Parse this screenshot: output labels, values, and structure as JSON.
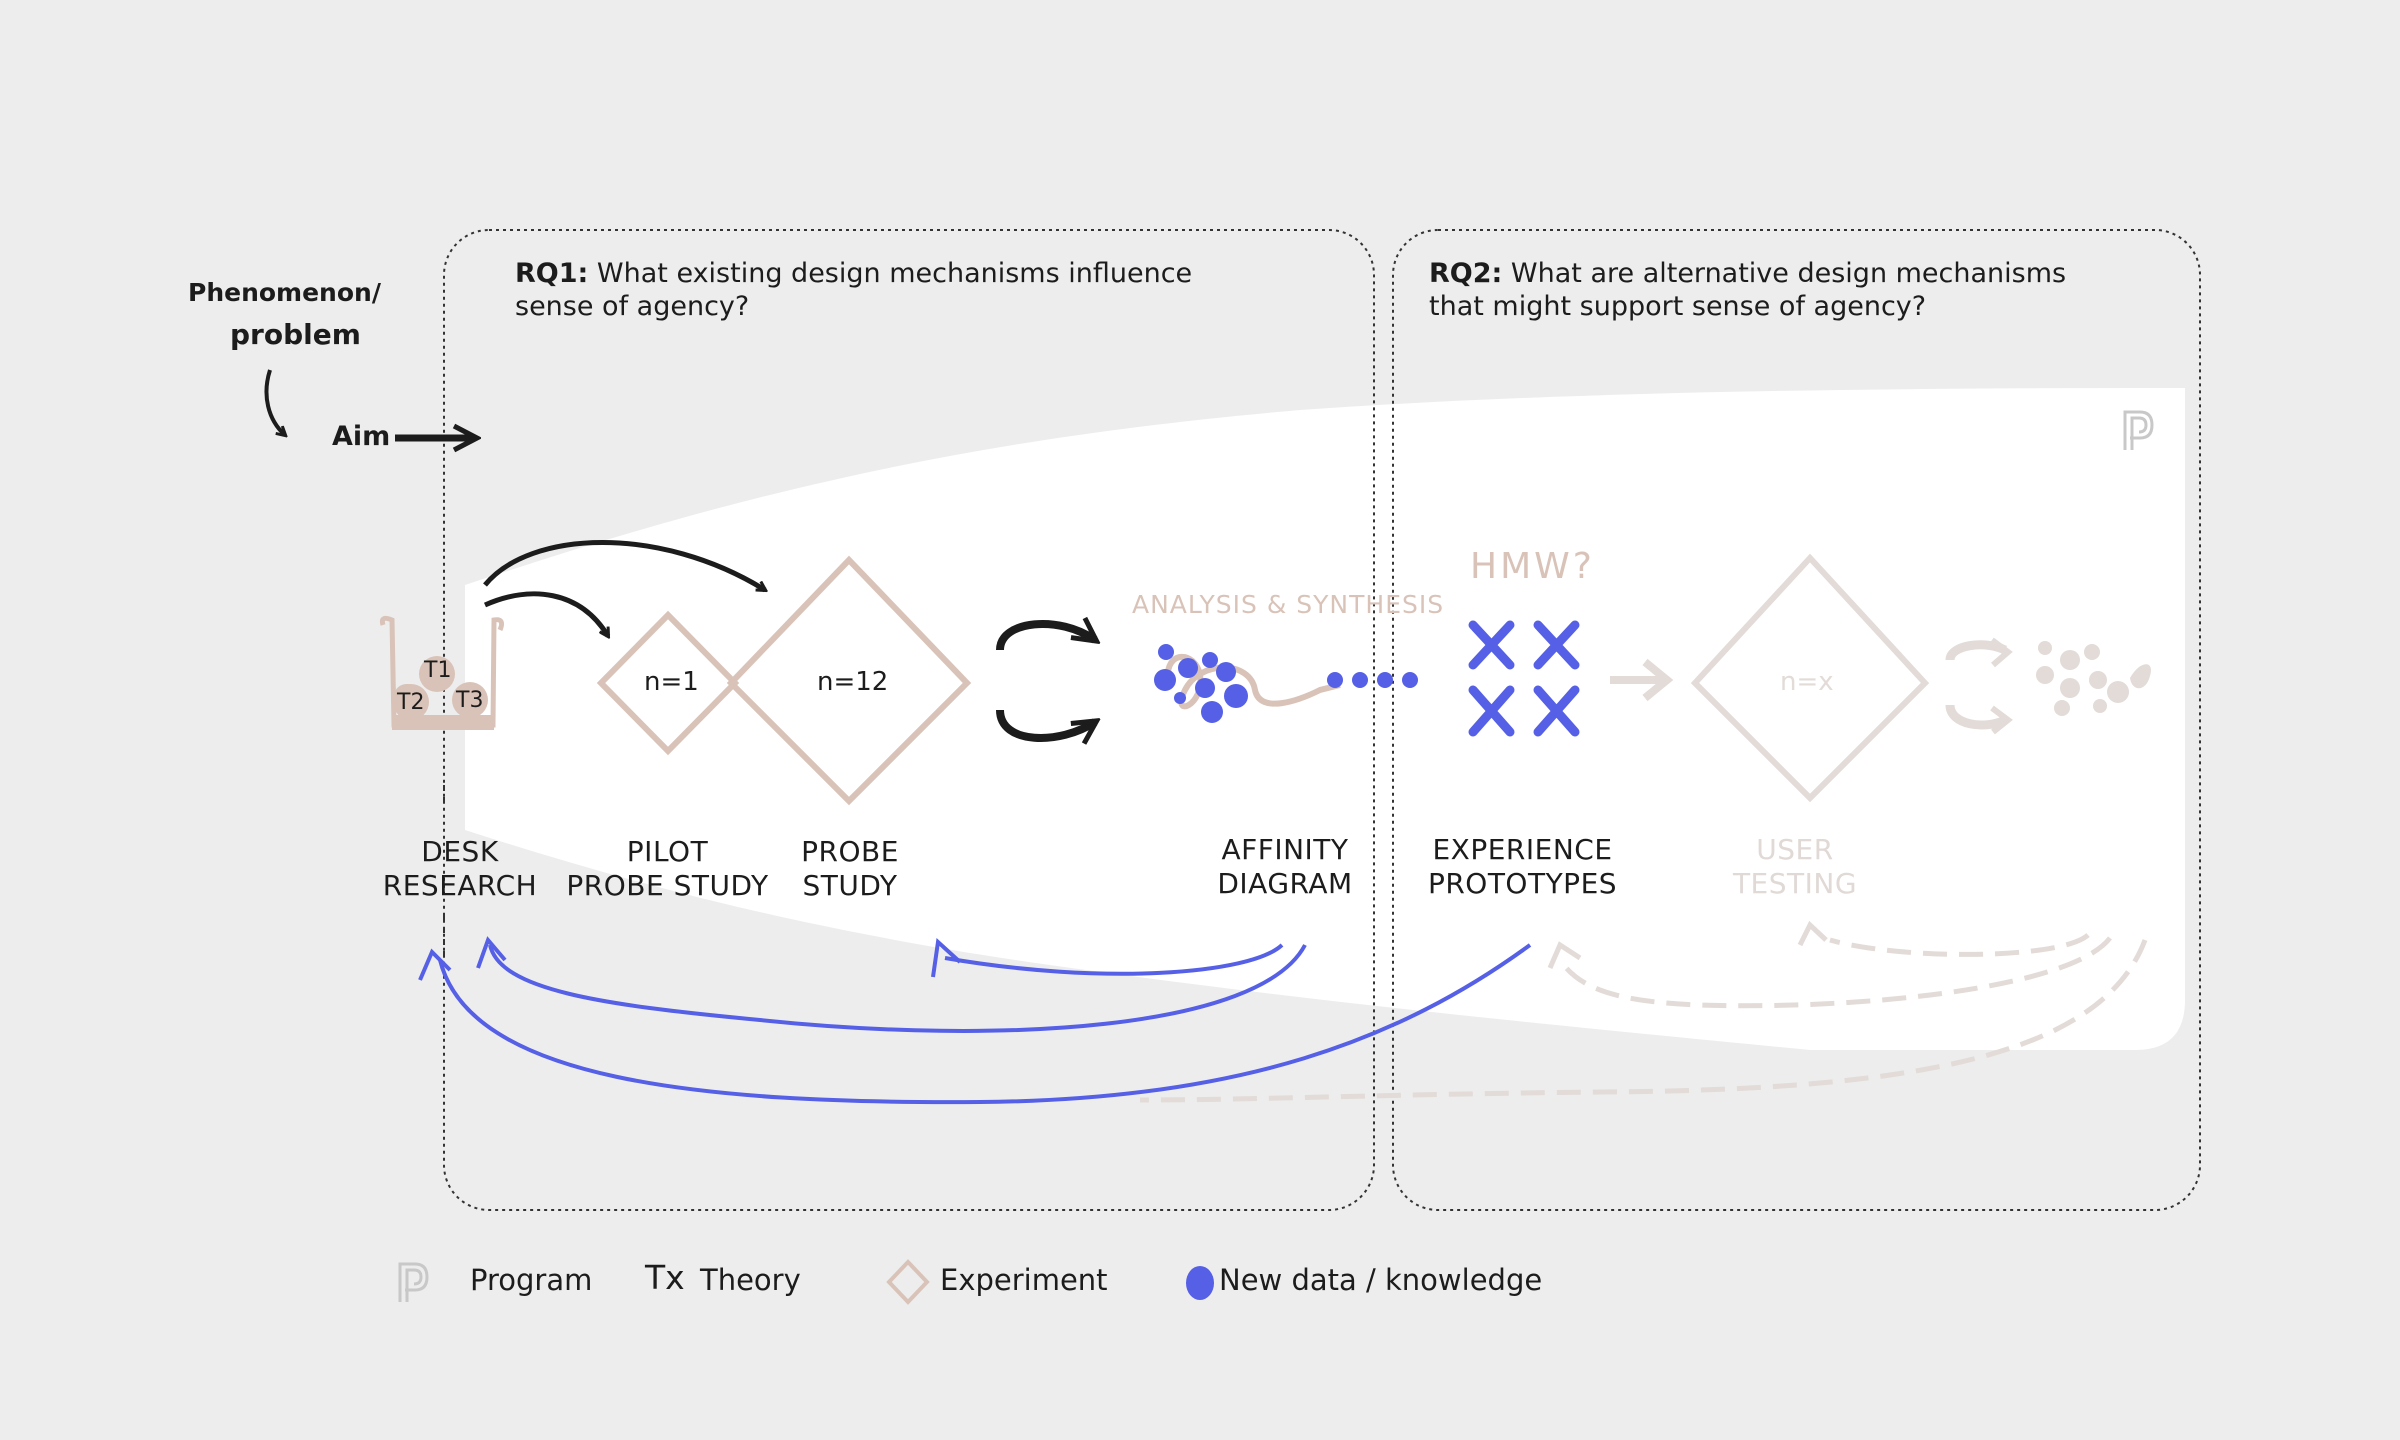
{
  "start": {
    "phenomenon_line1": "Phenomenon/",
    "phenomenon_line2": "problem",
    "aim": "Aim"
  },
  "rq1": {
    "label": "RQ1:",
    "line1": "What existing design mechanisms influence",
    "line2": "sense of agency?"
  },
  "rq2": {
    "label": "RQ2:",
    "line1": "What are alternative design mechanisms",
    "line2": "that might support sense of agency?"
  },
  "theories": [
    "T1",
    "T2",
    "T3"
  ],
  "experiments": {
    "pilot_n": "n=1",
    "probe_n": "n=12",
    "user_n": "n=x"
  },
  "annotations": {
    "analysis": "ANALYSIS & SYNTHESIS",
    "hmw": "HMW?"
  },
  "stages": {
    "desk": [
      "DESK",
      "RESEARCH"
    ],
    "pilot": [
      "PILOT",
      "PROBE STUDY"
    ],
    "probe": [
      "PROBE",
      "STUDY"
    ],
    "affinity": [
      "AFFINITY",
      "DIAGRAM"
    ],
    "experience": [
      "EXPERIENCE",
      "PROTOTYPES"
    ],
    "user": [
      "USER",
      "TESTING"
    ]
  },
  "legend": {
    "program": "Program",
    "theory_symbol": "Tx",
    "theory": "Theory",
    "experiment": "Experiment",
    "new_data": "New data / knowledge"
  },
  "colors": {
    "background": "#ededed",
    "program_area": "#ffffff",
    "experiment": "#d9c3b8",
    "new_data": "#5560e6",
    "faded": "#e2dbd8",
    "ink": "#1c1c1c"
  }
}
